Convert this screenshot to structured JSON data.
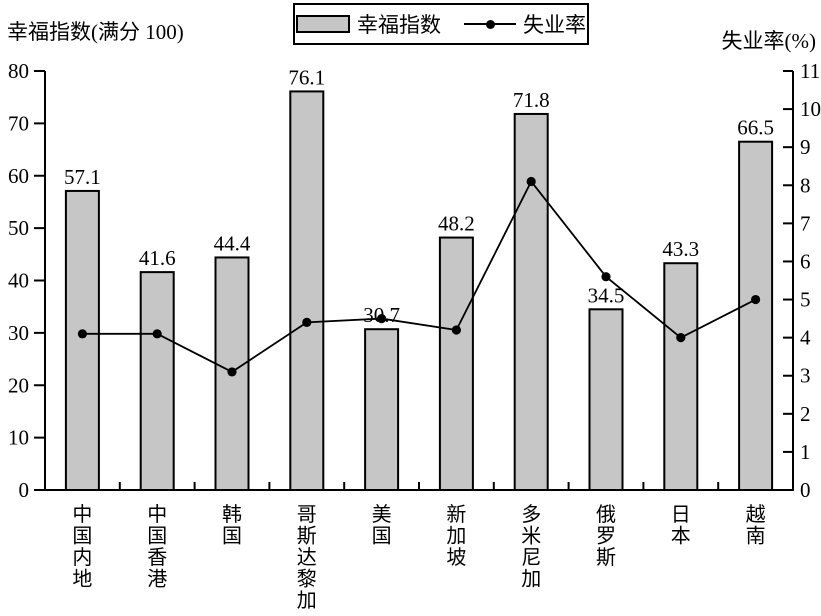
{
  "chart_data": {
    "type": "bar",
    "subtype": "bar+line combo, dual y-axis",
    "categories": [
      "中国内地",
      "中国香港",
      "韩国",
      "哥斯达黎加",
      "美国",
      "新加坡",
      "多米尼加",
      "俄罗斯",
      "日本",
      "越南"
    ],
    "series": [
      {
        "name": "幸福指数",
        "type": "bar",
        "axis": "left",
        "color": "#c6c6c6",
        "values": [
          57.1,
          41.6,
          44.4,
          76.1,
          30.7,
          48.2,
          71.8,
          34.5,
          43.3,
          66.5
        ]
      },
      {
        "name": "失业率",
        "type": "line",
        "axis": "right",
        "color": "#000000",
        "values": [
          4.1,
          4.1,
          3.1,
          4.4,
          4.5,
          4.2,
          8.1,
          5.6,
          4.0,
          5.0
        ]
      }
    ],
    "bar_value_labels": [
      "57.1",
      "41.6",
      "44.4",
      "76.1",
      "30.7",
      "48.2",
      "71.8",
      "34.5",
      "43.3",
      "66.5"
    ],
    "left_axis": {
      "title": "幸福指数(满分 100)",
      "min": 0,
      "max": 80,
      "tick_step": 10,
      "ticks": [
        0,
        10,
        20,
        30,
        40,
        50,
        60,
        70,
        80
      ]
    },
    "right_axis": {
      "title": "失业率(%)",
      "min": 0,
      "max": 11,
      "tick_step": 1,
      "ticks": [
        0,
        1,
        2,
        3,
        4,
        5,
        6,
        7,
        8,
        9,
        10,
        11
      ]
    },
    "legend": [
      {
        "label": "幸福指数",
        "marker": "bar-swatch"
      },
      {
        "label": "失业率",
        "marker": "line-dot"
      }
    ],
    "legend_position": "top-center",
    "grid": false,
    "colors": {
      "bar_fill": "#c6c6c6",
      "stroke": "#000000",
      "background": "#ffffff"
    }
  }
}
